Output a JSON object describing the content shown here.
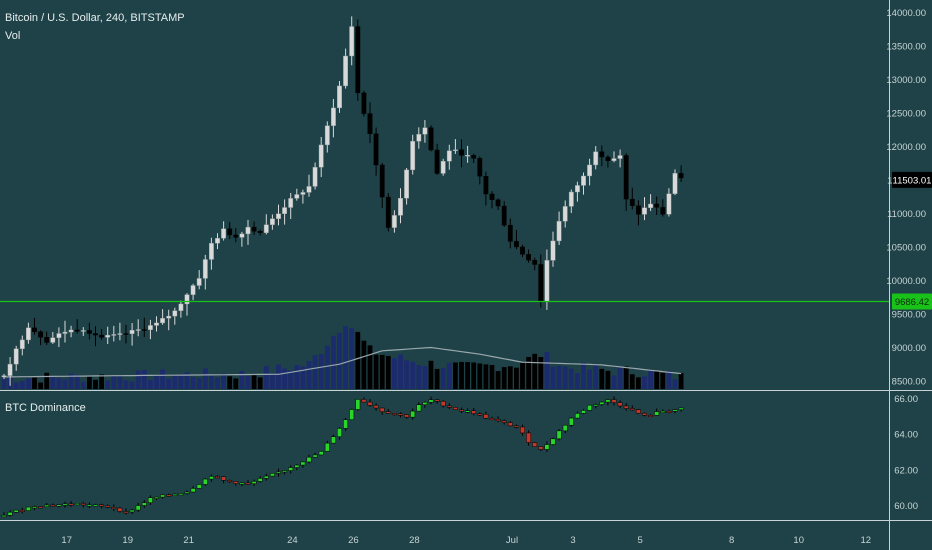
{
  "header": {
    "symbol": "Bitcoin / U.S. Dollar",
    "interval": "240",
    "exchange": "BITSTAMP",
    "volume_label": "Vol"
  },
  "indicator": {
    "name": "BTC Dominance"
  },
  "colors": {
    "background": "#1e4247",
    "up_candle": "#d9d9d9",
    "down_candle": "#000000",
    "volume_up": "#1c2a6e",
    "volume_down": "#000000",
    "volume_ma": "#9aa7ad",
    "support_line": "#19c219",
    "dom_up": "#27d627",
    "dom_down": "#c0392b"
  },
  "chart_data": [
    {
      "type": "candlestick",
      "name": "Bitcoin / U.S. Dollar, 240, BITSTAMP",
      "x_ticks": [
        "17",
        "19",
        "21",
        "24",
        "26",
        "28",
        "Jul",
        "3",
        "5",
        "8",
        "10",
        "12"
      ],
      "y_ticks": [
        8500,
        9000,
        9500,
        10000,
        10500,
        11000,
        11500,
        12000,
        12500,
        13000,
        13500,
        14000
      ],
      "ylim": [
        8380,
        14100
      ],
      "last_price": 11503.01,
      "horizontal_line": 9686.42,
      "close_anchors": [
        [
          0,
          8600
        ],
        [
          4,
          9320
        ],
        [
          7,
          9100
        ],
        [
          10,
          9240
        ],
        [
          13,
          9280
        ],
        [
          16,
          9150
        ],
        [
          19,
          9180
        ],
        [
          22,
          9260
        ],
        [
          25,
          9350
        ],
        [
          28,
          9540
        ],
        [
          30,
          9800
        ],
        [
          32,
          10050
        ],
        [
          34,
          10550
        ],
        [
          36,
          10750
        ],
        [
          38,
          10650
        ],
        [
          40,
          10800
        ],
        [
          42,
          10720
        ],
        [
          44,
          10920
        ],
        [
          47,
          11200
        ],
        [
          50,
          11400
        ],
        [
          53,
          12300
        ],
        [
          55,
          12900
        ],
        [
          57,
          13800
        ],
        [
          58,
          12800
        ],
        [
          60,
          12200
        ],
        [
          61,
          11700
        ],
        [
          63,
          10800
        ],
        [
          65,
          11200
        ],
        [
          67,
          12100
        ],
        [
          69,
          12300
        ],
        [
          71,
          11600
        ],
        [
          73,
          11950
        ],
        [
          75,
          11900
        ],
        [
          77,
          11800
        ],
        [
          79,
          11300
        ],
        [
          81,
          11100
        ],
        [
          83,
          10600
        ],
        [
          85,
          10400
        ],
        [
          87,
          10250
        ],
        [
          88,
          9700
        ],
        [
          89,
          10300
        ],
        [
          91,
          10900
        ],
        [
          93,
          11300
        ],
        [
          95,
          11550
        ],
        [
          97,
          11950
        ],
        [
          99,
          11800
        ],
        [
          101,
          11850
        ],
        [
          102,
          11200
        ],
        [
          104,
          11000
        ],
        [
          106,
          11150
        ],
        [
          108,
          11000
        ],
        [
          110,
          11600
        ],
        [
          111,
          11503.01
        ]
      ],
      "volume_anchors": [
        [
          0,
          8540
        ],
        [
          10,
          8560
        ],
        [
          20,
          8570
        ],
        [
          30,
          8600
        ],
        [
          40,
          8600
        ],
        [
          50,
          8750
        ],
        [
          56,
          9400
        ],
        [
          58,
          9200
        ],
        [
          60,
          8950
        ],
        [
          64,
          8850
        ],
        [
          68,
          8780
        ],
        [
          75,
          8700
        ],
        [
          84,
          8750
        ],
        [
          88,
          8900
        ],
        [
          92,
          8700
        ],
        [
          96,
          8680
        ],
        [
          100,
          8650
        ],
        [
          104,
          8640
        ],
        [
          111,
          8560
        ]
      ],
      "volume_ma_anchors": [
        [
          0,
          8560
        ],
        [
          20,
          8580
        ],
        [
          45,
          8600
        ],
        [
          55,
          8750
        ],
        [
          62,
          8950
        ],
        [
          70,
          9000
        ],
        [
          78,
          8900
        ],
        [
          85,
          8780
        ],
        [
          92,
          8760
        ],
        [
          98,
          8740
        ],
        [
          104,
          8680
        ],
        [
          111,
          8610
        ]
      ],
      "volume_y_ticks": [
        8500,
        9000
      ]
    },
    {
      "type": "candlestick",
      "name": "BTC Dominance",
      "y_ticks": [
        60,
        62,
        64,
        66
      ],
      "ylim": [
        59.2,
        66.3
      ],
      "close_anchors": [
        [
          0,
          59.5
        ],
        [
          5,
          60.0
        ],
        [
          12,
          60.1
        ],
        [
          18,
          59.9
        ],
        [
          20,
          59.6
        ],
        [
          24,
          60.4
        ],
        [
          30,
          60.8
        ],
        [
          34,
          61.7
        ],
        [
          36,
          61.4
        ],
        [
          40,
          61.2
        ],
        [
          46,
          62.0
        ],
        [
          52,
          63.0
        ],
        [
          56,
          64.8
        ],
        [
          58,
          66.0
        ],
        [
          62,
          65.3
        ],
        [
          66,
          65.0
        ],
        [
          68,
          65.6
        ],
        [
          70,
          65.9
        ],
        [
          74,
          65.4
        ],
        [
          77,
          65.2
        ],
        [
          80,
          64.8
        ],
        [
          84,
          64.4
        ],
        [
          86,
          63.6
        ],
        [
          88,
          63.1
        ],
        [
          90,
          63.8
        ],
        [
          93,
          64.9
        ],
        [
          96,
          65.6
        ],
        [
          99,
          65.9
        ],
        [
          102,
          65.5
        ],
        [
          105,
          65.0
        ],
        [
          108,
          65.3
        ],
        [
          111,
          65.4
        ]
      ]
    }
  ]
}
